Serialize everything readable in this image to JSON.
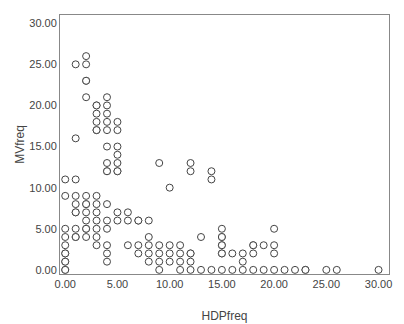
{
  "chart_data": {
    "type": "scatter",
    "xlabel": "HDPfreq",
    "ylabel": "MVfreq",
    "xlim": [
      -0.5,
      31
    ],
    "ylim": [
      -0.5,
      31
    ],
    "xticks": [
      {
        "value": 0.0,
        "label": "0.00"
      },
      {
        "value": 5.0,
        "label": "5.00"
      },
      {
        "value": 10.0,
        "label": "10.00"
      },
      {
        "value": 15.0,
        "label": "15.00"
      },
      {
        "value": 20.0,
        "label": "20.00"
      },
      {
        "value": 25.0,
        "label": "25.00"
      },
      {
        "value": 30.0,
        "label": "30.00"
      }
    ],
    "yticks": [
      {
        "value": 0.0,
        "label": "0.00"
      },
      {
        "value": 5.0,
        "label": "5.00"
      },
      {
        "value": 10.0,
        "label": "10.00"
      },
      {
        "value": 15.0,
        "label": "15.00"
      },
      {
        "value": 20.0,
        "label": "20.00"
      },
      {
        "value": 25.0,
        "label": "25.00"
      },
      {
        "value": 30.0,
        "label": "30.00"
      }
    ],
    "grid": false,
    "color": "#444444",
    "marker": "circle",
    "x": [
      1,
      1,
      2,
      2,
      2,
      2,
      2,
      3,
      3,
      3,
      3,
      3,
      3,
      4,
      4,
      4,
      4,
      4,
      4,
      4,
      4,
      4,
      5,
      5,
      5,
      5,
      5,
      5,
      5,
      0,
      0,
      0,
      0,
      0,
      0,
      0,
      0,
      0,
      0,
      0,
      1,
      1,
      1,
      1,
      1,
      1,
      1,
      1,
      2,
      2,
      2,
      2,
      2,
      2,
      2,
      2,
      3,
      3,
      3,
      3,
      3,
      3,
      3,
      4,
      4,
      4,
      4,
      4,
      4,
      5,
      5,
      6,
      6,
      6,
      7,
      7,
      7,
      7,
      8,
      8,
      8,
      8,
      8,
      9,
      9,
      9,
      9,
      9,
      10,
      10,
      10,
      10,
      11,
      11,
      11,
      11,
      12,
      12,
      12,
      12,
      12,
      12,
      13,
      13,
      14,
      14,
      14,
      15,
      15,
      15,
      15,
      15,
      15,
      15,
      15,
      16,
      16,
      17,
      17,
      17,
      18,
      18,
      18,
      18,
      19,
      19,
      20,
      20,
      20,
      20,
      21,
      22,
      23,
      23,
      25,
      26,
      30
    ],
    "y": [
      25,
      16,
      26,
      25,
      23,
      23,
      21,
      20,
      20,
      19,
      18,
      17,
      17,
      21,
      20,
      19,
      18,
      17,
      15,
      13,
      12,
      12,
      18,
      17,
      15,
      14,
      13,
      12,
      12,
      11,
      9,
      5,
      4,
      3,
      2,
      2,
      1,
      1,
      0,
      0,
      11,
      9,
      8,
      7,
      7,
      5,
      4,
      4,
      9,
      8,
      8,
      7,
      6,
      5,
      5,
      4,
      9,
      8,
      7,
      6,
      5,
      4,
      3,
      8,
      6,
      5,
      3,
      2,
      1,
      7,
      6,
      7,
      6,
      3,
      6,
      6,
      3,
      2,
      6,
      4,
      3,
      2,
      1,
      13,
      3,
      2,
      1,
      0,
      10,
      3,
      2,
      1,
      3,
      2,
      1,
      0,
      13,
      12,
      2,
      2,
      1,
      0,
      4,
      0,
      12,
      11,
      0,
      5,
      4,
      4,
      3,
      3,
      2,
      2,
      0,
      2,
      0,
      2,
      1,
      0,
      3,
      3,
      2,
      0,
      3,
      0,
      5,
      3,
      2,
      0,
      0,
      0,
      0,
      0,
      0,
      0,
      0
    ]
  }
}
